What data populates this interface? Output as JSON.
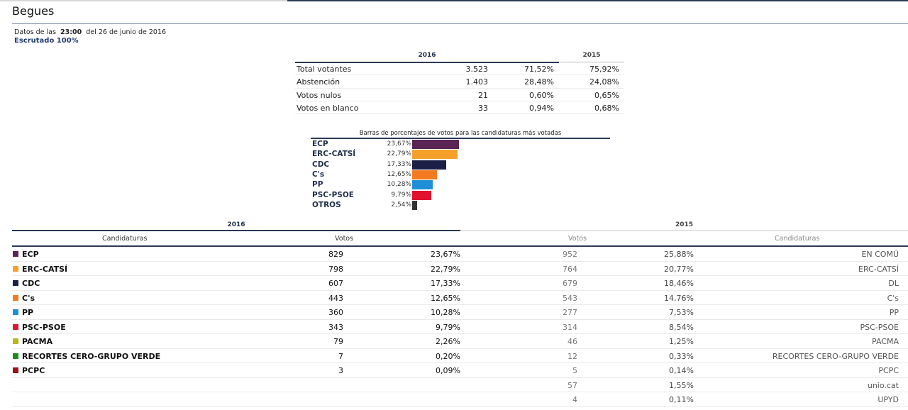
{
  "page": {
    "title": "Begues"
  },
  "meta": {
    "datos_prefix": "Datos de las",
    "hora": "23:00",
    "fecha": "del 26 de junio de 2016",
    "escrutado": "Escrutado 100%"
  },
  "participation": {
    "year_current": "2016",
    "year_previous": "2015",
    "rows": [
      {
        "label": "Total votantes",
        "votes": "3.523",
        "pct_2016": "71,52%",
        "pct_2015": "75,92%"
      },
      {
        "label": "Abstención",
        "votes": "1.403",
        "pct_2016": "28,48%",
        "pct_2015": "24,08%"
      },
      {
        "label": "Votos nulos",
        "votes": "21",
        "pct_2016": "0,60%",
        "pct_2015": "0,65%"
      },
      {
        "label": "Votos en blanco",
        "votes": "33",
        "pct_2016": "0,94%",
        "pct_2015": "0,68%"
      }
    ]
  },
  "chart_data": {
    "type": "bar",
    "title": "Barras de porcentajes de votos para las candidaturas más votadas",
    "categories": [
      "ECP",
      "ERC-CATSÍ",
      "CDC",
      "C's",
      "PP",
      "PSC-PSOE",
      "OTROS"
    ],
    "values": [
      23.67,
      22.79,
      17.33,
      12.65,
      10.28,
      9.79,
      2.54
    ],
    "value_labels": [
      "23,67%",
      "22,79%",
      "17,33%",
      "12,65%",
      "10,28%",
      "9,79%",
      "2,54%"
    ],
    "colors": [
      "#5a2454",
      "#f5a02a",
      "#1c1f45",
      "#f47a1f",
      "#1e8fd6",
      "#e1122e",
      "#333333"
    ],
    "xlabel": "",
    "ylabel": "",
    "orientation": "horizontal"
  },
  "results": {
    "year_current": "2016",
    "year_previous": "2015",
    "col_candidaturas": "Candidaturas",
    "col_votos": "Votos",
    "col_votos_prev": "Votos",
    "col_candidaturas_prev": "Candidaturas",
    "rows": [
      {
        "color": "#5a2454",
        "name": "ECP",
        "votes": "829",
        "pct": "23,67%",
        "votes_prev": "952",
        "pct_prev": "25,88%",
        "name_prev": "EN COMÚ"
      },
      {
        "color": "#f5a02a",
        "name": "ERC-CATSÍ",
        "votes": "798",
        "pct": "22,79%",
        "votes_prev": "764",
        "pct_prev": "20,77%",
        "name_prev": "ERC-CATSÍ"
      },
      {
        "color": "#1c1f45",
        "name": "CDC",
        "votes": "607",
        "pct": "17,33%",
        "votes_prev": "679",
        "pct_prev": "18,46%",
        "name_prev": "DL"
      },
      {
        "color": "#f47a1f",
        "name": "C's",
        "votes": "443",
        "pct": "12,65%",
        "votes_prev": "543",
        "pct_prev": "14,76%",
        "name_prev": "C's"
      },
      {
        "color": "#1e8fd6",
        "name": "PP",
        "votes": "360",
        "pct": "10,28%",
        "votes_prev": "277",
        "pct_prev": "7,53%",
        "name_prev": "PP"
      },
      {
        "color": "#e1122e",
        "name": "PSC-PSOE",
        "votes": "343",
        "pct": "9,79%",
        "votes_prev": "314",
        "pct_prev": "8,54%",
        "name_prev": "PSC-PSOE"
      },
      {
        "color": "#b6b81c",
        "name": "PACMA",
        "votes": "79",
        "pct": "2,26%",
        "votes_prev": "46",
        "pct_prev": "1,25%",
        "name_prev": "PACMA"
      },
      {
        "color": "#1f8a1f",
        "name": "RECORTES CERO-GRUPO VERDE",
        "votes": "7",
        "pct": "0,20%",
        "votes_prev": "12",
        "pct_prev": "0,33%",
        "name_prev": "RECORTES CERO-GRUPO VERDE"
      },
      {
        "color": "#9c1018",
        "name": "PCPC",
        "votes": "3",
        "pct": "0,09%",
        "votes_prev": "5",
        "pct_prev": "0,14%",
        "name_prev": "PCPC"
      },
      {
        "color": "",
        "name": "",
        "votes": "",
        "pct": "",
        "votes_prev": "57",
        "pct_prev": "1,55%",
        "name_prev": "unio.cat"
      },
      {
        "color": "",
        "name": "",
        "votes": "",
        "pct": "",
        "votes_prev": "4",
        "pct_prev": "0,11%",
        "name_prev": "UPYD"
      }
    ]
  }
}
